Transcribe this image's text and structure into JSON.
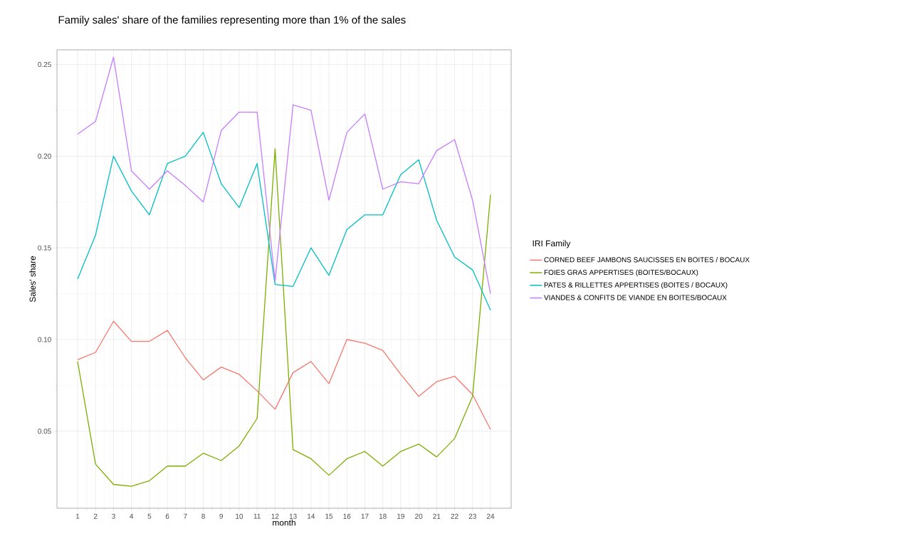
{
  "chart_data": {
    "type": "line",
    "title": "Family sales' share of the families representing more than 1% of the sales",
    "xlabel": "month",
    "ylabel": "Sales' share",
    "legend_title": "IRI Family",
    "legend": "right",
    "grid": true,
    "marker": "none",
    "line_style": "solid",
    "x": [
      1,
      2,
      3,
      4,
      5,
      6,
      7,
      8,
      9,
      10,
      11,
      12,
      13,
      14,
      15,
      16,
      17,
      18,
      19,
      20,
      21,
      22,
      23,
      24
    ],
    "xlim": [
      -0.15,
      25.15
    ],
    "xticks": [
      1,
      2,
      3,
      4,
      5,
      6,
      7,
      8,
      9,
      10,
      11,
      12,
      13,
      14,
      15,
      16,
      17,
      18,
      19,
      20,
      21,
      22,
      23,
      24
    ],
    "ylim": [
      0.008,
      0.258
    ],
    "yticks": [
      {
        "value": 0.05,
        "label": "0.05"
      },
      {
        "value": 0.1,
        "label": "0.10"
      },
      {
        "value": 0.15,
        "label": "0.15"
      },
      {
        "value": 0.2,
        "label": "0.20"
      },
      {
        "value": 0.25,
        "label": "0.25"
      }
    ],
    "series": [
      {
        "name": "CORNED BEEF JAMBONS SAUCISSES EN BOITES / BOCAUX",
        "color": "#f8766d",
        "values": [
          0.089,
          0.093,
          0.11,
          0.099,
          0.099,
          0.105,
          0.09,
          0.078,
          0.085,
          0.081,
          0.072,
          0.062,
          0.082,
          0.088,
          0.076,
          0.1,
          0.098,
          0.094,
          0.081,
          0.069,
          0.077,
          0.08,
          0.07,
          0.051
        ]
      },
      {
        "name": "FOIES GRAS APPERTISES (BOITES/BOCAUX)",
        "color": "#7cae00",
        "values": [
          0.088,
          0.032,
          0.021,
          0.02,
          0.023,
          0.031,
          0.031,
          0.038,
          0.034,
          0.042,
          0.057,
          0.204,
          0.04,
          0.035,
          0.026,
          0.035,
          0.039,
          0.031,
          0.039,
          0.043,
          0.036,
          0.046,
          0.069,
          0.179
        ]
      },
      {
        "name": "PATES & RILLETTES APPERTISES (BOITES / BOCAUX)",
        "color": "#00bfc4",
        "values": [
          0.133,
          0.157,
          0.2,
          0.181,
          0.168,
          0.196,
          0.2,
          0.213,
          0.185,
          0.172,
          0.196,
          0.13,
          0.129,
          0.15,
          0.135,
          0.16,
          0.168,
          0.168,
          0.19,
          0.198,
          0.165,
          0.145,
          0.138,
          0.116
        ]
      },
      {
        "name": "VIANDES & CONFITS DE VIANDE EN BOITES/BOCAUX",
        "color": "#c77cff",
        "values": [
          0.212,
          0.219,
          0.254,
          0.192,
          0.182,
          0.192,
          0.184,
          0.175,
          0.214,
          0.224,
          0.224,
          0.132,
          0.228,
          0.225,
          0.176,
          0.213,
          0.223,
          0.182,
          0.186,
          0.185,
          0.203,
          0.209,
          0.176,
          0.125
        ]
      }
    ]
  }
}
